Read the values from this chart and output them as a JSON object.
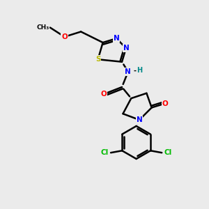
{
  "background_color": "#ebebeb",
  "atom_colors": {
    "C": "#000000",
    "N": "#0000ff",
    "O": "#ff0000",
    "S": "#b8b800",
    "Cl": "#00bb00",
    "H": "#008888"
  },
  "bond_color": "#000000",
  "bond_width": 1.8,
  "figsize": [
    3.0,
    3.0
  ],
  "dpi": 100,
  "xlim": [
    0,
    10
  ],
  "ylim": [
    0,
    10
  ]
}
